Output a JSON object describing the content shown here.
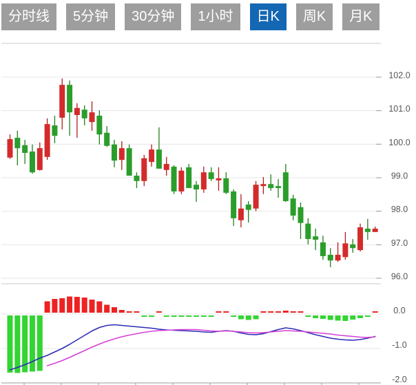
{
  "tabs": {
    "items": [
      {
        "label": "分时线",
        "active": false
      },
      {
        "label": "5分钟",
        "active": false
      },
      {
        "label": "30分钟",
        "active": false
      },
      {
        "label": "1小时",
        "active": false
      },
      {
        "label": "日K",
        "active": true
      },
      {
        "label": "周K",
        "active": false
      },
      {
        "label": "月K",
        "active": false
      }
    ],
    "active_color": "#1467b3",
    "inactive_color": "#9e9e9e",
    "text_color": "#ffffff"
  },
  "chart_data": {
    "type": "candlestick_with_macd",
    "title": "",
    "legend_position": "none",
    "grid": true,
    "price_panel": {
      "ylim": [
        95.8,
        103.0
      ],
      "yticks": [
        102.0,
        101.0,
        100.0,
        99.0,
        98.0,
        97.0,
        96.0
      ],
      "up_color": "#d32b2b",
      "down_color": "#2b9d2b",
      "up_wick_color": "#b31a1a",
      "down_wick_color": "#1e7e1e",
      "candles": [
        {
          "o": 99.6,
          "h": 100.29,
          "l": 99.56,
          "c": 100.15
        },
        {
          "o": 100.19,
          "h": 100.4,
          "l": 99.37,
          "c": 99.88
        },
        {
          "o": 99.97,
          "h": 100.13,
          "l": 99.41,
          "c": 99.74
        },
        {
          "o": 99.78,
          "h": 99.99,
          "l": 99.12,
          "c": 99.16
        },
        {
          "o": 99.23,
          "h": 100.05,
          "l": 99.21,
          "c": 99.88
        },
        {
          "o": 99.62,
          "h": 100.77,
          "l": 99.53,
          "c": 100.6
        },
        {
          "o": 100.56,
          "h": 100.85,
          "l": 100.03,
          "c": 100.25
        },
        {
          "o": 100.79,
          "h": 101.96,
          "l": 100.44,
          "c": 101.77
        },
        {
          "o": 101.77,
          "h": 101.9,
          "l": 100.25,
          "c": 100.95
        },
        {
          "o": 100.87,
          "h": 101.22,
          "l": 100.19,
          "c": 101.08
        },
        {
          "o": 101.03,
          "h": 101.16,
          "l": 100.56,
          "c": 100.77
        },
        {
          "o": 100.66,
          "h": 101.28,
          "l": 100.4,
          "c": 100.95
        },
        {
          "o": 100.85,
          "h": 101.01,
          "l": 99.99,
          "c": 100.29
        },
        {
          "o": 100.34,
          "h": 100.54,
          "l": 99.92,
          "c": 99.95
        },
        {
          "o": 99.99,
          "h": 100.13,
          "l": 99.31,
          "c": 99.51
        },
        {
          "o": 99.53,
          "h": 100.09,
          "l": 99.23,
          "c": 99.88
        },
        {
          "o": 99.88,
          "h": 99.99,
          "l": 99.06,
          "c": 99.06
        },
        {
          "o": 99.06,
          "h": 99.16,
          "l": 98.69,
          "c": 98.9
        },
        {
          "o": 98.9,
          "h": 99.68,
          "l": 98.75,
          "c": 99.58
        },
        {
          "o": 99.47,
          "h": 99.99,
          "l": 99.33,
          "c": 99.84
        },
        {
          "o": 99.84,
          "h": 100.5,
          "l": 99.27,
          "c": 99.27
        },
        {
          "o": 99.23,
          "h": 99.62,
          "l": 99.06,
          "c": 99.41
        },
        {
          "o": 99.33,
          "h": 99.37,
          "l": 98.51,
          "c": 98.59
        },
        {
          "o": 98.59,
          "h": 99.31,
          "l": 98.51,
          "c": 99.21
        },
        {
          "o": 99.31,
          "h": 99.41,
          "l": 98.69,
          "c": 98.69
        },
        {
          "o": 98.79,
          "h": 98.9,
          "l": 98.28,
          "c": 98.65
        },
        {
          "o": 98.65,
          "h": 99.33,
          "l": 98.55,
          "c": 99.16
        },
        {
          "o": 99.16,
          "h": 99.31,
          "l": 98.9,
          "c": 98.96
        },
        {
          "o": 98.92,
          "h": 99.31,
          "l": 98.61,
          "c": 98.98
        },
        {
          "o": 98.98,
          "h": 99.16,
          "l": 98.51,
          "c": 98.55
        },
        {
          "o": 98.59,
          "h": 98.65,
          "l": 97.56,
          "c": 97.79
        },
        {
          "o": 97.73,
          "h": 98.51,
          "l": 97.52,
          "c": 98.08
        },
        {
          "o": 98.2,
          "h": 98.3,
          "l": 97.66,
          "c": 98.04
        },
        {
          "o": 98.08,
          "h": 98.9,
          "l": 98.0,
          "c": 98.79
        },
        {
          "o": 98.75,
          "h": 99.02,
          "l": 98.51,
          "c": 98.81
        },
        {
          "o": 98.81,
          "h": 99.1,
          "l": 98.61,
          "c": 98.69
        },
        {
          "o": 98.75,
          "h": 98.96,
          "l": 98.4,
          "c": 98.69
        },
        {
          "o": 99.16,
          "h": 99.41,
          "l": 98.28,
          "c": 98.3
        },
        {
          "o": 98.38,
          "h": 98.49,
          "l": 97.73,
          "c": 97.87
        },
        {
          "o": 98.12,
          "h": 98.26,
          "l": 97.17,
          "c": 97.65
        },
        {
          "o": 97.63,
          "h": 97.79,
          "l": 97.01,
          "c": 97.17
        },
        {
          "o": 97.25,
          "h": 97.48,
          "l": 96.84,
          "c": 97.15
        },
        {
          "o": 97.07,
          "h": 97.27,
          "l": 96.55,
          "c": 96.66
        },
        {
          "o": 96.7,
          "h": 96.9,
          "l": 96.33,
          "c": 96.53
        },
        {
          "o": 96.53,
          "h": 97.07,
          "l": 96.49,
          "c": 96.7
        },
        {
          "o": 96.63,
          "h": 97.38,
          "l": 96.55,
          "c": 97.04
        },
        {
          "o": 97.01,
          "h": 97.17,
          "l": 96.76,
          "c": 96.9
        },
        {
          "o": 96.84,
          "h": 97.63,
          "l": 96.8,
          "c": 97.52
        },
        {
          "o": 97.48,
          "h": 97.77,
          "l": 97.15,
          "c": 97.38
        },
        {
          "o": 97.38,
          "h": 97.54,
          "l": 97.38,
          "c": 97.48
        }
      ]
    },
    "macd_panel": {
      "ylim": [
        -2.0,
        0.55
      ],
      "yticks": [
        0.0,
        -1.0,
        -2.0
      ],
      "hist_up_color": "#ee2222",
      "hist_down_color": "#33d433",
      "dif_color": "#2b2bb4",
      "dea_color": "#d63fd6",
      "histogram": [
        -1.7,
        -1.71,
        -1.69,
        -1.67,
        -1.65,
        0.37,
        0.44,
        0.46,
        0.51,
        0.5,
        0.48,
        0.42,
        0.37,
        0.27,
        0.2,
        0.12,
        0.06,
        0.03,
        -0.03,
        -0.03,
        0.02,
        -0.02,
        -0.04,
        -0.04,
        -0.05,
        -0.05,
        -0.04,
        -0.04,
        0.02,
        0.05,
        -0.05,
        -0.15,
        -0.17,
        -0.15,
        0.02,
        0.04,
        0.06,
        0.1,
        0.06,
        0.03,
        -0.02,
        -0.12,
        -0.14,
        -0.17,
        -0.19,
        -0.2,
        -0.16,
        -0.12,
        -0.04,
        0.05
      ],
      "dif": [
        -1.62,
        -1.55,
        -1.47,
        -1.38,
        -1.28,
        -1.2,
        -1.1,
        -1.0,
        -0.88,
        -0.75,
        -0.62,
        -0.49,
        -0.39,
        -0.33,
        -0.31,
        -0.33,
        -0.35,
        -0.37,
        -0.39,
        -0.41,
        -0.44,
        -0.46,
        -0.47,
        -0.48,
        -0.49,
        -0.5,
        -0.52,
        -0.53,
        -0.5,
        -0.48,
        -0.5,
        -0.55,
        -0.59,
        -0.6,
        -0.57,
        -0.51,
        -0.45,
        -0.4,
        -0.43,
        -0.48,
        -0.54,
        -0.6,
        -0.65,
        -0.7,
        -0.73,
        -0.75,
        -0.76,
        -0.74,
        -0.7,
        -0.65
      ],
      "dea": [
        null,
        null,
        null,
        null,
        null,
        -1.5,
        -1.43,
        -1.35,
        -1.26,
        -1.16,
        -1.06,
        -0.96,
        -0.87,
        -0.79,
        -0.72,
        -0.66,
        -0.61,
        -0.57,
        -0.53,
        -0.5,
        -0.48,
        -0.47,
        -0.46,
        -0.45,
        -0.45,
        -0.45,
        -0.47,
        -0.49,
        -0.5,
        -0.49,
        -0.5,
        -0.52,
        -0.54,
        -0.55,
        -0.54,
        -0.52,
        -0.5,
        -0.48,
        -0.49,
        -0.5,
        -0.52,
        -0.54,
        -0.56,
        -0.58,
        -0.61,
        -0.63,
        -0.65,
        -0.67,
        -0.68,
        -0.66
      ]
    },
    "style": {
      "grid_color": "#e6e6e6",
      "border_color": "#c8c8c8",
      "axis_color": "#999999",
      "label_color": "#555555"
    }
  }
}
